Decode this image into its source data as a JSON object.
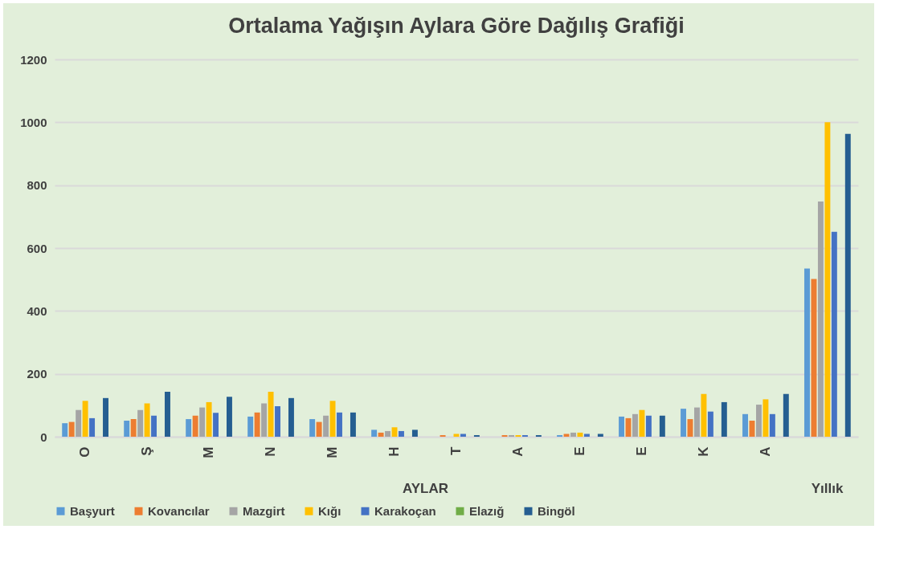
{
  "chart_data": {
    "type": "bar",
    "title": "Ortalama Yağışın Aylara Göre Dağılış Grafiği",
    "categories": [
      "O",
      "Ş",
      "M",
      "N",
      "M",
      "H",
      "T",
      "A",
      "E",
      "E",
      "K",
      "A",
      null
    ],
    "annotations": [
      "AYLAR",
      "Yıllık"
    ],
    "series": [
      {
        "name": "Başyurt",
        "color": "#5b9bd5",
        "values": [
          43,
          51,
          56,
          64,
          56,
          22,
          null,
          null,
          5,
          64,
          89,
          72,
          535
        ]
      },
      {
        "name": "Kovancılar",
        "color": "#ed7d31",
        "values": [
          47,
          56,
          67,
          77,
          47,
          13,
          5,
          5,
          9,
          59,
          56,
          51,
          502
        ]
      },
      {
        "name": "Mazgirt",
        "color": "#a5a5a5",
        "values": [
          85,
          85,
          93,
          106,
          67,
          18,
          null,
          5,
          13,
          72,
          93,
          102,
          748
        ]
      },
      {
        "name": "Kığı",
        "color": "#ffc000",
        "values": [
          114,
          106,
          110,
          143,
          114,
          30,
          9,
          5,
          13,
          85,
          136,
          119,
          1000
        ]
      },
      {
        "name": "Karakoçan",
        "color": "#4472c4",
        "values": [
          59,
          67,
          76,
          97,
          77,
          18,
          9,
          5,
          9,
          67,
          80,
          72,
          652
        ]
      },
      {
        "name": "Elazığ",
        "color": "#70ad47",
        "values": [
          null,
          null,
          null,
          null,
          null,
          null,
          null,
          null,
          null,
          null,
          null,
          null,
          null
        ]
      },
      {
        "name": "Bingöl",
        "color": "#255e91",
        "values": [
          123,
          143,
          127,
          123,
          77,
          22,
          5,
          5,
          9,
          67,
          110,
          136,
          963
        ]
      }
    ],
    "ylim": [
      0,
      1200
    ],
    "yticks": [
      0,
      200,
      400,
      600,
      800,
      1000,
      1200
    ],
    "grid": "y",
    "legend": "bottom"
  }
}
